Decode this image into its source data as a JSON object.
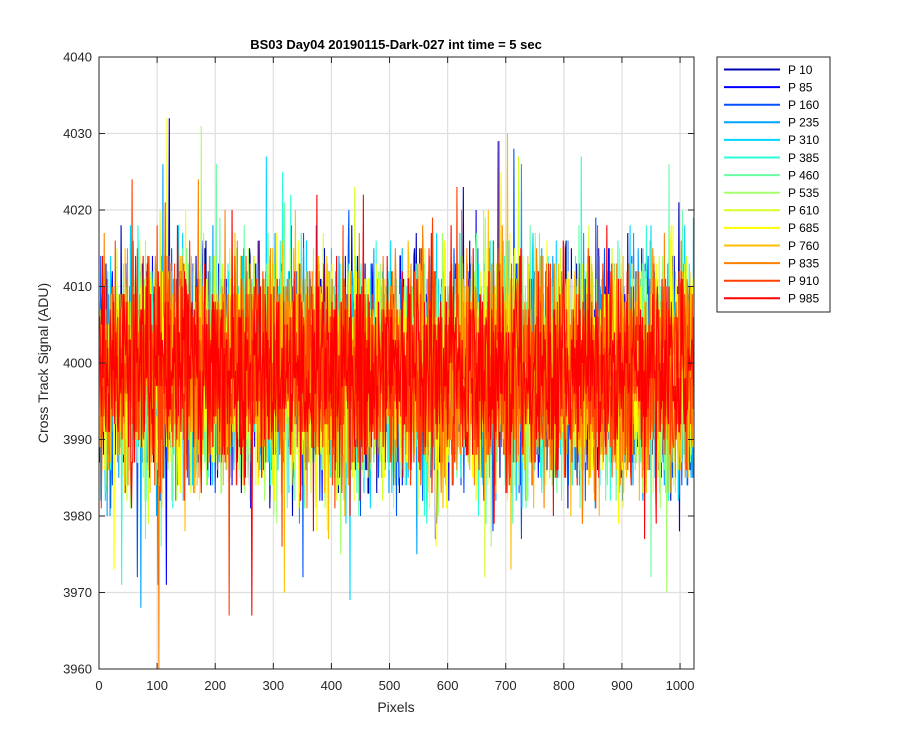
{
  "chart_data": {
    "type": "line",
    "title": "BS03 Day04 20190115-Dark-027 int time = 5 sec",
    "xlabel": "Pixels",
    "ylabel": "Cross Track Signal (ADU)",
    "xlim": [
      0,
      1024
    ],
    "ylim": [
      3960,
      4040
    ],
    "xticks": [
      "0",
      "100",
      "200",
      "300",
      "400",
      "500",
      "600",
      "700",
      "800",
      "900",
      "1000"
    ],
    "yticks": [
      "3960",
      "3970",
      "3980",
      "3990",
      "4000",
      "4010",
      "4020",
      "4030",
      "4040"
    ],
    "grid": true,
    "legend_position": "outside-top-right",
    "n_points": 1024,
    "series": [
      {
        "name": "P 10",
        "color": "#0000b3",
        "mean": 3999,
        "std": 7,
        "min": 3971,
        "max": 4032
      },
      {
        "name": "P 85",
        "color": "#0000ff",
        "mean": 3999,
        "std": 7,
        "min": 3971,
        "max": 4029
      },
      {
        "name": "P 160",
        "color": "#0052ff",
        "mean": 3999,
        "std": 7,
        "min": 3972,
        "max": 4028
      },
      {
        "name": "P 235",
        "color": "#00a4ff",
        "mean": 3999,
        "std": 7,
        "min": 3968,
        "max": 4026
      },
      {
        "name": "P 310",
        "color": "#00d6ff",
        "mean": 3999,
        "std": 7,
        "min": 3969,
        "max": 4027
      },
      {
        "name": "P 385",
        "color": "#29ffd6",
        "mean": 3999,
        "std": 7,
        "min": 3971,
        "max": 4027
      },
      {
        "name": "P 460",
        "color": "#6bffa4",
        "mean": 3999,
        "std": 7,
        "min": 3972,
        "max": 4026
      },
      {
        "name": "P 535",
        "color": "#a4ff6b",
        "mean": 3999,
        "std": 7,
        "min": 3970,
        "max": 4031
      },
      {
        "name": "P 610",
        "color": "#d6ff29",
        "mean": 3999,
        "std": 7,
        "min": 3972,
        "max": 4027
      },
      {
        "name": "P 685",
        "color": "#ffff00",
        "mean": 3999,
        "std": 7,
        "min": 3973,
        "max": 4032
      },
      {
        "name": "P 760",
        "color": "#ffbf00",
        "mean": 3999,
        "std": 7,
        "min": 3970,
        "max": 4030
      },
      {
        "name": "P 835",
        "color": "#ff8000",
        "mean": 3999,
        "std": 7,
        "min": 3960,
        "max": 4029
      },
      {
        "name": "P 910",
        "color": "#ff4000",
        "mean": 3999,
        "std": 7,
        "min": 3967,
        "max": 4024
      },
      {
        "name": "P 985",
        "color": "#ff0000",
        "mean": 3999,
        "std": 7,
        "min": 3967,
        "max": 4022
      }
    ]
  }
}
